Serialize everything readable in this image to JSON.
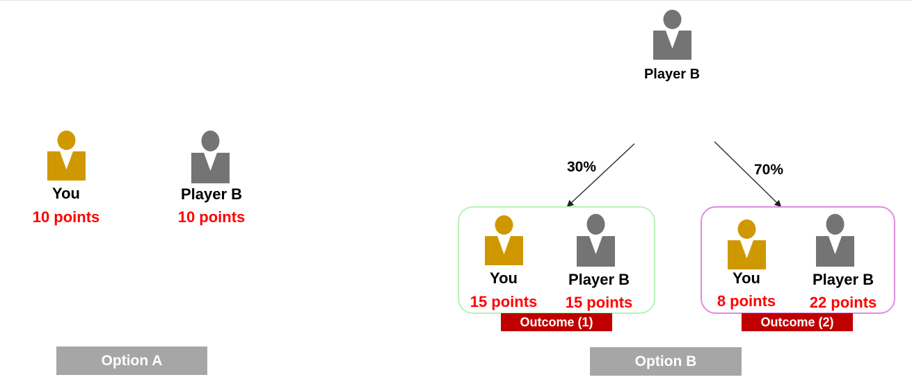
{
  "colors": {
    "you": "#d09800",
    "player_b": "#747474",
    "points_text": "#ff0000",
    "outcome_tag_bg": "#c00000",
    "option_button_bg": "#a6a6a6",
    "box_outcome1_border": "#b8f2b8",
    "box_outcome2_border": "#e08be0"
  },
  "option_a": {
    "button_label": "Option A",
    "you_label": "You",
    "you_points": "10 points",
    "player_b_label": "Player B",
    "player_b_points": "10 points"
  },
  "option_b": {
    "button_label": "Option B",
    "top_player_label": "Player B",
    "outcome1": {
      "probability": "30%",
      "you_label": "You",
      "you_points": "15 points",
      "player_b_label": "Player B",
      "player_b_points": "15 points",
      "tag": "Outcome (1)"
    },
    "outcome2": {
      "probability": "70%",
      "you_label": "You",
      "you_points": "8 points",
      "player_b_label": "Player B",
      "player_b_points": "22 points",
      "tag": "Outcome (2)"
    }
  }
}
